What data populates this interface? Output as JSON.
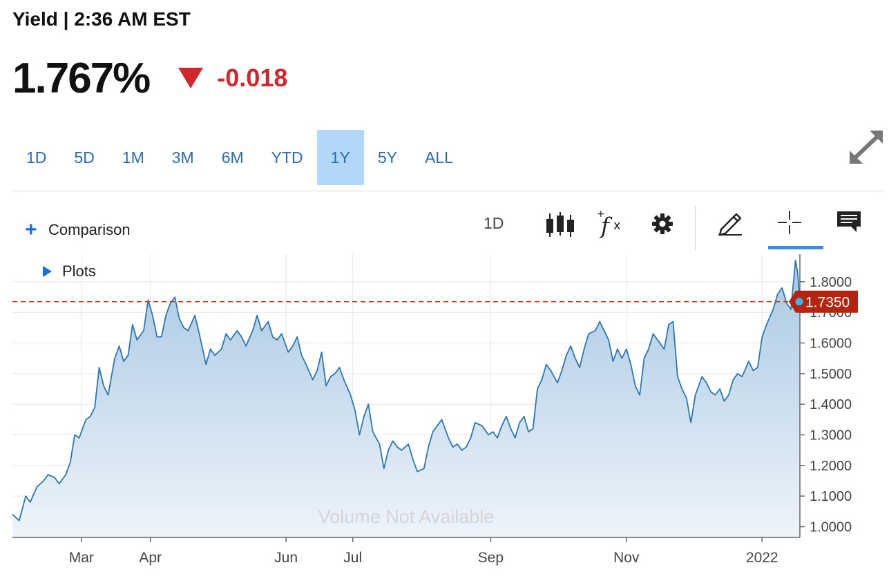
{
  "header": {
    "title": "Yield | 2:36 AM EST"
  },
  "quote": {
    "value": "1.767%",
    "change": "-0.018",
    "direction": "down",
    "down_color": "#d1262b"
  },
  "range_tabs": [
    "1D",
    "5D",
    "1M",
    "3M",
    "6M",
    "YTD",
    "1Y",
    "5Y",
    "ALL"
  ],
  "active_range": "1Y",
  "toolbar": {
    "comparison_label": "Comparison",
    "interval_label": "1D",
    "plots_label": "Plots",
    "icons": [
      "candlestick-icon",
      "function-icon",
      "gear-icon",
      "pencil-icon",
      "crosshair-icon",
      "comment-icon"
    ],
    "active_tool": "crosshair-icon"
  },
  "chart_data": {
    "type": "area",
    "title": "",
    "xlabel": "",
    "ylabel": "",
    "x_ticks": [
      "Mar",
      "Apr",
      "Jun",
      "Jul",
      "Sep",
      "Nov",
      "2022"
    ],
    "y_ticks": [
      "1.0000",
      "1.1000",
      "1.2000",
      "1.3000",
      "1.4000",
      "1.5000",
      "1.6000",
      "1.7000",
      "1.8000"
    ],
    "ylim": [
      0.965,
      1.89
    ],
    "xlim": [
      "2021-01-29",
      "2022-01-18"
    ],
    "grid": true,
    "watermark": "Volume Not Available",
    "reference_line": {
      "value": 1.735,
      "label": "1.7350",
      "color": "#c8381e"
    },
    "line_color": "#2a77b5",
    "series": [
      {
        "values": [
          [
            "2021-01-29",
            1.04
          ],
          [
            "2021-02-01",
            1.02
          ],
          [
            "2021-02-04",
            1.1
          ],
          [
            "2021-02-06",
            1.08
          ],
          [
            "2021-02-09",
            1.13
          ],
          [
            "2021-02-12",
            1.15
          ],
          [
            "2021-02-14",
            1.17
          ],
          [
            "2021-02-17",
            1.16
          ],
          [
            "2021-02-19",
            1.14
          ],
          [
            "2021-02-22",
            1.17
          ],
          [
            "2021-02-24",
            1.21
          ],
          [
            "2021-02-26",
            1.3
          ],
          [
            "2021-02-28",
            1.29
          ],
          [
            "2021-03-03",
            1.35
          ],
          [
            "2021-03-05",
            1.36
          ],
          [
            "2021-03-07",
            1.39
          ],
          [
            "2021-03-09",
            1.52
          ],
          [
            "2021-03-11",
            1.46
          ],
          [
            "2021-03-13",
            1.43
          ],
          [
            "2021-03-16",
            1.55
          ],
          [
            "2021-03-18",
            1.59
          ],
          [
            "2021-03-20",
            1.54
          ],
          [
            "2021-03-22",
            1.56
          ],
          [
            "2021-03-24",
            1.66
          ],
          [
            "2021-03-26",
            1.61
          ],
          [
            "2021-03-29",
            1.64
          ],
          [
            "2021-03-31",
            1.74
          ],
          [
            "2021-04-02",
            1.69
          ],
          [
            "2021-04-04",
            1.62
          ],
          [
            "2021-04-06",
            1.62
          ],
          [
            "2021-04-08",
            1.69
          ],
          [
            "2021-04-10",
            1.73
          ],
          [
            "2021-04-12",
            1.75
          ],
          [
            "2021-04-14",
            1.68
          ],
          [
            "2021-04-16",
            1.65
          ],
          [
            "2021-04-18",
            1.64
          ],
          [
            "2021-04-21",
            1.69
          ],
          [
            "2021-04-23",
            1.63
          ],
          [
            "2021-04-26",
            1.53
          ],
          [
            "2021-04-28",
            1.58
          ],
          [
            "2021-04-30",
            1.56
          ],
          [
            "2021-05-03",
            1.58
          ],
          [
            "2021-05-05",
            1.63
          ],
          [
            "2021-05-07",
            1.61
          ],
          [
            "2021-05-10",
            1.64
          ],
          [
            "2021-05-12",
            1.62
          ],
          [
            "2021-05-14",
            1.59
          ],
          [
            "2021-05-17",
            1.64
          ],
          [
            "2021-05-19",
            1.69
          ],
          [
            "2021-05-21",
            1.64
          ],
          [
            "2021-05-24",
            1.67
          ],
          [
            "2021-05-26",
            1.62
          ],
          [
            "2021-05-28",
            1.61
          ],
          [
            "2021-05-30",
            1.63
          ],
          [
            "2021-06-02",
            1.57
          ],
          [
            "2021-06-04",
            1.59
          ],
          [
            "2021-06-06",
            1.62
          ],
          [
            "2021-06-08",
            1.56
          ],
          [
            "2021-06-10",
            1.53
          ],
          [
            "2021-06-13",
            1.48
          ],
          [
            "2021-06-15",
            1.51
          ],
          [
            "2021-06-17",
            1.57
          ],
          [
            "2021-06-19",
            1.46
          ],
          [
            "2021-06-21",
            1.49
          ],
          [
            "2021-06-23",
            1.5
          ],
          [
            "2021-06-25",
            1.52
          ],
          [
            "2021-06-27",
            1.48
          ],
          [
            "2021-06-30",
            1.43
          ],
          [
            "2021-07-02",
            1.38
          ],
          [
            "2021-07-04",
            1.3
          ],
          [
            "2021-07-06",
            1.36
          ],
          [
            "2021-07-08",
            1.4
          ],
          [
            "2021-07-10",
            1.31
          ],
          [
            "2021-07-13",
            1.27
          ],
          [
            "2021-07-15",
            1.19
          ],
          [
            "2021-07-17",
            1.25
          ],
          [
            "2021-07-19",
            1.28
          ],
          [
            "2021-07-21",
            1.26
          ],
          [
            "2021-07-23",
            1.25
          ],
          [
            "2021-07-26",
            1.27
          ],
          [
            "2021-07-28",
            1.22
          ],
          [
            "2021-07-30",
            1.18
          ],
          [
            "2021-08-02",
            1.19
          ],
          [
            "2021-08-04",
            1.26
          ],
          [
            "2021-08-06",
            1.31
          ],
          [
            "2021-08-08",
            1.33
          ],
          [
            "2021-08-10",
            1.35
          ],
          [
            "2021-08-13",
            1.29
          ],
          [
            "2021-08-15",
            1.26
          ],
          [
            "2021-08-17",
            1.27
          ],
          [
            "2021-08-19",
            1.25
          ],
          [
            "2021-08-21",
            1.26
          ],
          [
            "2021-08-23",
            1.29
          ],
          [
            "2021-08-25",
            1.34
          ],
          [
            "2021-08-28",
            1.33
          ],
          [
            "2021-08-31",
            1.3
          ],
          [
            "2021-09-02",
            1.31
          ],
          [
            "2021-09-04",
            1.29
          ],
          [
            "2021-09-06",
            1.33
          ],
          [
            "2021-09-08",
            1.36
          ],
          [
            "2021-09-10",
            1.32
          ],
          [
            "2021-09-12",
            1.29
          ],
          [
            "2021-09-14",
            1.34
          ],
          [
            "2021-09-16",
            1.36
          ],
          [
            "2021-09-18",
            1.31
          ],
          [
            "2021-09-20",
            1.32
          ],
          [
            "2021-09-22",
            1.45
          ],
          [
            "2021-09-24",
            1.48
          ],
          [
            "2021-09-26",
            1.53
          ],
          [
            "2021-09-28",
            1.51
          ],
          [
            "2021-10-01",
            1.47
          ],
          [
            "2021-10-03",
            1.51
          ],
          [
            "2021-10-05",
            1.56
          ],
          [
            "2021-10-07",
            1.59
          ],
          [
            "2021-10-09",
            1.55
          ],
          [
            "2021-10-11",
            1.52
          ],
          [
            "2021-10-13",
            1.58
          ],
          [
            "2021-10-15",
            1.63
          ],
          [
            "2021-10-18",
            1.64
          ],
          [
            "2021-10-20",
            1.67
          ],
          [
            "2021-10-22",
            1.64
          ],
          [
            "2021-10-24",
            1.61
          ],
          [
            "2021-10-26",
            1.54
          ],
          [
            "2021-10-28",
            1.58
          ],
          [
            "2021-10-30",
            1.55
          ],
          [
            "2021-11-01",
            1.58
          ],
          [
            "2021-11-03",
            1.53
          ],
          [
            "2021-11-05",
            1.46
          ],
          [
            "2021-11-07",
            1.43
          ],
          [
            "2021-11-09",
            1.55
          ],
          [
            "2021-11-11",
            1.58
          ],
          [
            "2021-11-13",
            1.63
          ],
          [
            "2021-11-16",
            1.6
          ],
          [
            "2021-11-18",
            1.58
          ],
          [
            "2021-11-20",
            1.66
          ],
          [
            "2021-11-22",
            1.67
          ],
          [
            "2021-11-24",
            1.49
          ],
          [
            "2021-11-26",
            1.45
          ],
          [
            "2021-11-28",
            1.42
          ],
          [
            "2021-11-30",
            1.34
          ],
          [
            "2021-12-02",
            1.43
          ],
          [
            "2021-12-05",
            1.49
          ],
          [
            "2021-12-07",
            1.47
          ],
          [
            "2021-12-09",
            1.44
          ],
          [
            "2021-12-11",
            1.43
          ],
          [
            "2021-12-13",
            1.45
          ],
          [
            "2021-12-15",
            1.41
          ],
          [
            "2021-12-17",
            1.43
          ],
          [
            "2021-12-19",
            1.48
          ],
          [
            "2021-12-21",
            1.5
          ],
          [
            "2021-12-23",
            1.49
          ],
          [
            "2021-12-26",
            1.54
          ],
          [
            "2021-12-28",
            1.51
          ],
          [
            "2021-12-30",
            1.52
          ],
          [
            "2022-01-01",
            1.62
          ],
          [
            "2022-01-03",
            1.66
          ],
          [
            "2022-01-06",
            1.71
          ],
          [
            "2022-01-08",
            1.76
          ],
          [
            "2022-01-10",
            1.78
          ],
          [
            "2022-01-12",
            1.73
          ],
          [
            "2022-01-14",
            1.71
          ],
          [
            "2022-01-16",
            1.87
          ],
          [
            "2022-01-17",
            1.83
          ],
          [
            "2022-01-18",
            1.735
          ]
        ]
      }
    ]
  }
}
